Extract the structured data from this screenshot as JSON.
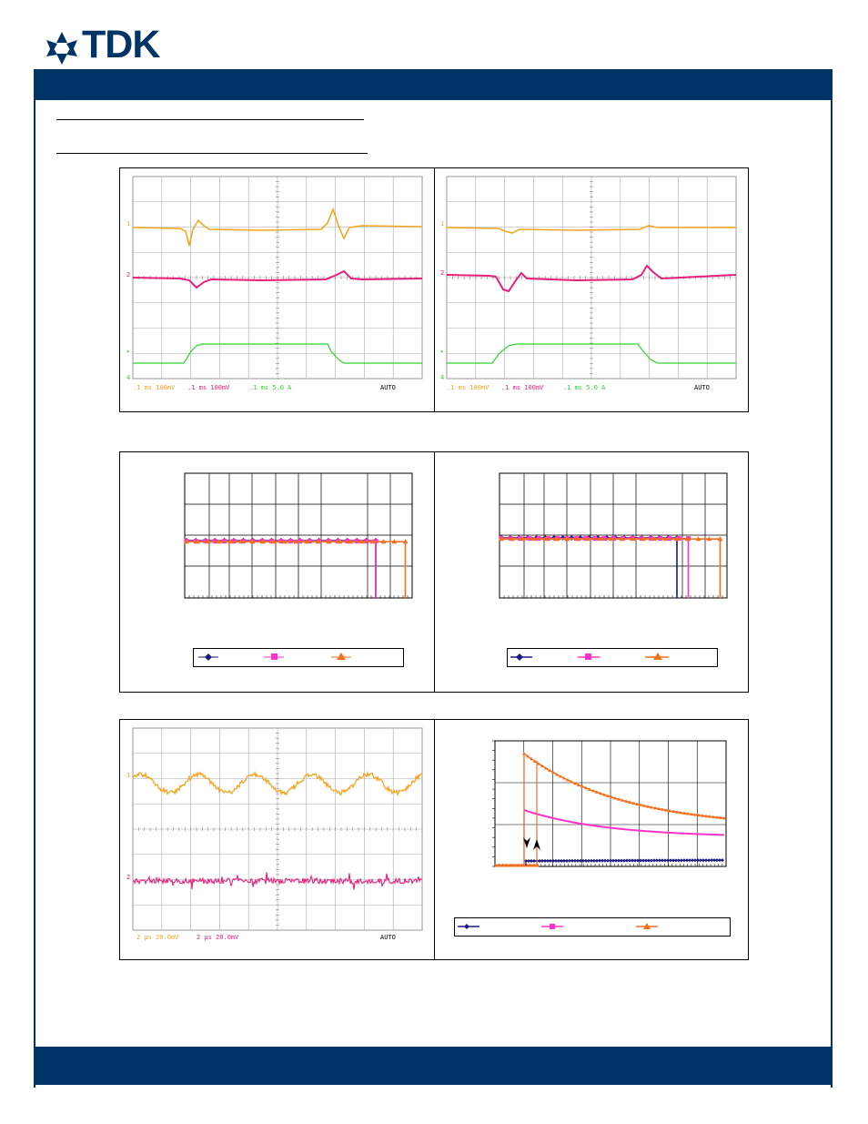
{
  "brand": {
    "logo_text": "TDK",
    "color": "#003466"
  },
  "colors": {
    "ch1": "#f5a623",
    "ch2": "#e8207a",
    "ch4": "#2dd62d",
    "vout_current": "#f07020",
    "magenta": "#ff33cc",
    "navy": "#1a1a80"
  },
  "scope_left": {
    "channel_markers": [
      "1",
      "2",
      "▸",
      "4"
    ],
    "readout": {
      "ch1": ".1 ms 100mV",
      "ch2": ".1 ms 100mV",
      "ch4": ".1 ms 5.0 A",
      "trigger": "AUTO"
    }
  },
  "scope_right": {
    "channel_markers": [
      "1",
      "2",
      "▸",
      "4"
    ],
    "readout": {
      "ch1": ".1 ms 100mV",
      "ch2": ".1 ms 100mV",
      "ch4": ".1 ms 5.0 A",
      "trigger": "AUTO"
    }
  },
  "scope_ripple": {
    "channel_markers": [
      "1",
      "2"
    ],
    "readout": {
      "ch1": "2 μs 20.0mV",
      "ch2": "2 μs 20.0mV",
      "trigger": "AUTO"
    }
  },
  "chart_data": [
    {
      "type": "line",
      "name": "efficiency-left",
      "series": [
        {
          "color": "#1a1a80",
          "marker": "diamond",
          "cutoff_x": 0.84
        },
        {
          "color": "#ff33cc",
          "marker": "square",
          "cutoff_x": 0.84
        },
        {
          "color": "#f07020",
          "marker": "triangle",
          "cutoff_x": 0.97
        }
      ]
    },
    {
      "type": "line",
      "name": "efficiency-right",
      "series": [
        {
          "color": "#1a1a80",
          "marker": "diamond",
          "cutoff_x": 0.78
        },
        {
          "color": "#ff33cc",
          "marker": "square",
          "cutoff_x": 0.83
        },
        {
          "color": "#f07020",
          "marker": "triangle",
          "cutoff_x": 0.97
        }
      ]
    },
    {
      "type": "line",
      "name": "startup",
      "series": [
        {
          "color": "#1a1a80",
          "marker": "diamond"
        },
        {
          "color": "#ff33cc",
          "marker": "square"
        },
        {
          "color": "#f07020",
          "marker": "triangle"
        }
      ]
    }
  ]
}
